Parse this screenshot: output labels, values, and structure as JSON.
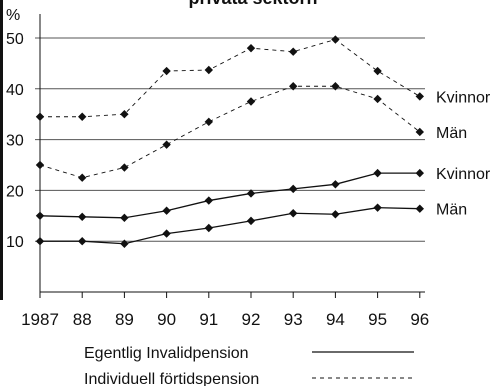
{
  "chart_data": {
    "type": "line",
    "title": "privata sektorn",
    "ylabel": "%",
    "y_ticks": [
      "50",
      "40",
      "30",
      "20",
      "10"
    ],
    "ylim": [
      0,
      50
    ],
    "x": [
      "1987",
      "88",
      "89",
      "90",
      "91",
      "92",
      "93",
      "94",
      "95",
      "96"
    ],
    "grid": true,
    "series": [
      {
        "name": "Kvinnor",
        "group": "Individuell förtidspension",
        "style": "dashed",
        "values": [
          34.5,
          34.5,
          35,
          43.5,
          43.7,
          48,
          47.3,
          49.7,
          43.5,
          38.5
        ]
      },
      {
        "name": "Män",
        "group": "Individuell förtidspension",
        "style": "dashed",
        "values": [
          25,
          22.5,
          24.5,
          29,
          33.5,
          37.5,
          40.5,
          40.5,
          38,
          31.5
        ]
      },
      {
        "name": "Kvinnor",
        "group": "Egentlig Invalidpension",
        "style": "solid",
        "values": [
          15,
          14.8,
          14.6,
          16,
          18,
          19.4,
          20.3,
          21.2,
          23.4,
          23.4
        ]
      },
      {
        "name": "Män",
        "group": "Egentlig Invalidpension",
        "style": "solid",
        "values": [
          10,
          10,
          9.5,
          11.5,
          12.6,
          14,
          15.5,
          15.3,
          16.6,
          16.4
        ]
      }
    ],
    "legend": [
      {
        "label": "Egentlig Invalidpension",
        "style": "solid"
      },
      {
        "label": "Individuell förtidspension",
        "style": "dashed"
      }
    ],
    "colors": {
      "line": "#111111",
      "grid": "#555555"
    }
  }
}
